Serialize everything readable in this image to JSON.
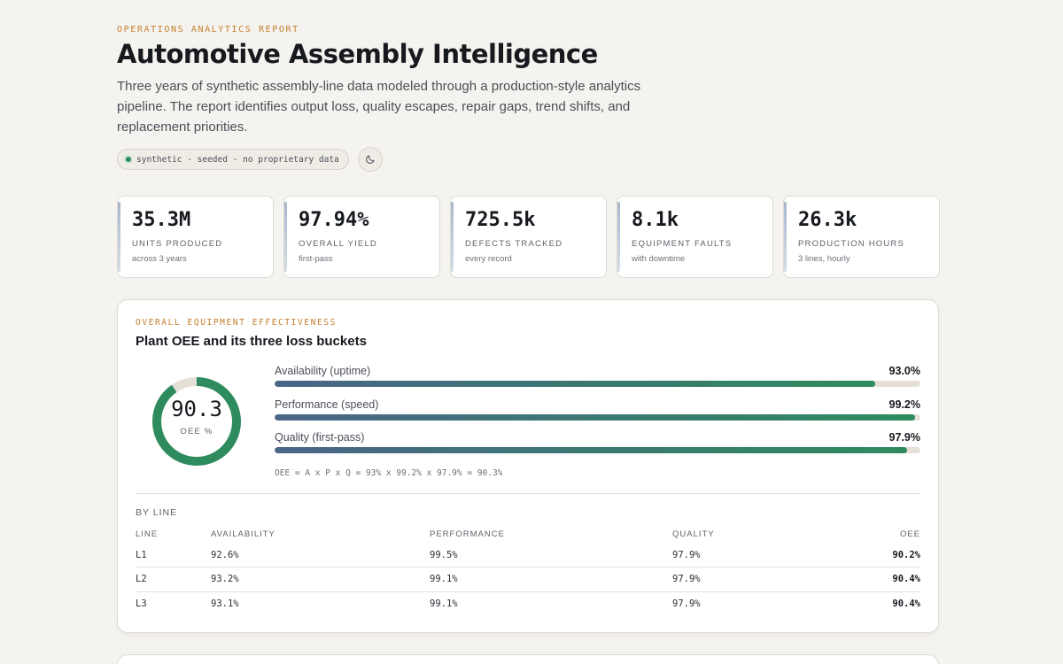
{
  "header": {
    "eyebrow": "OPERATIONS ANALYTICS REPORT",
    "title": "Automotive Assembly Intelligence",
    "subtitle": "Three years of synthetic assembly-line data modeled through a production-style analytics pipeline. The report identifies output loss, quality escapes, repair gaps, trend shifts, and replacement priorities.",
    "badge": "synthetic - seeded - no proprietary data",
    "theme_toggle_icon": "moon-icon"
  },
  "kpis": [
    {
      "value": "35.3M",
      "label": "UNITS PRODUCED",
      "sub": "across 3 years"
    },
    {
      "value": "97.94%",
      "label": "OVERALL YIELD",
      "sub": "first-pass"
    },
    {
      "value": "725.5k",
      "label": "DEFECTS TRACKED",
      "sub": "every record"
    },
    {
      "value": "8.1k",
      "label": "EQUIPMENT FAULTS",
      "sub": "with downtime"
    },
    {
      "value": "26.3k",
      "label": "PRODUCTION HOURS",
      "sub": "3 lines, hourly"
    }
  ],
  "oee": {
    "eyebrow": "OVERALL EQUIPMENT EFFECTIVENESS",
    "title": "Plant OEE and its three loss buckets",
    "value": "90.3",
    "value_fraction": 0.903,
    "value_label": "OEE %",
    "ring_color": "#2e8b5e",
    "bars": [
      {
        "label": "Availability (uptime)",
        "value": "93.0%",
        "fraction": 0.93
      },
      {
        "label": "Performance (speed)",
        "value": "99.2%",
        "fraction": 0.992
      },
      {
        "label": "Quality (first-pass)",
        "value": "97.9%",
        "fraction": 0.979
      }
    ],
    "formula": "OEE = A x P x Q = 93% x 99.2% x 97.9% = 90.3%"
  },
  "by_line": {
    "label": "BY LINE",
    "columns": [
      "LINE",
      "AVAILABILITY",
      "PERFORMANCE",
      "QUALITY",
      "OEE"
    ],
    "rows": [
      [
        "L1",
        "92.6%",
        "99.5%",
        "97.9%",
        "90.2%"
      ],
      [
        "L2",
        "93.2%",
        "99.1%",
        "97.9%",
        "90.4%"
      ],
      [
        "L3",
        "93.1%",
        "99.1%",
        "97.9%",
        "90.4%"
      ]
    ]
  }
}
